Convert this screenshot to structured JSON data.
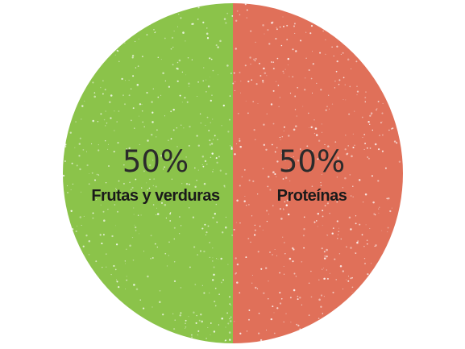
{
  "chart_data": {
    "type": "pie",
    "categories": [
      "Frutas y verduras",
      "Proteínas"
    ],
    "values": [
      50,
      50
    ],
    "value_labels": [
      "50%",
      "50%"
    ],
    "colors": [
      "#8bc34a",
      "#e07059"
    ],
    "legend": "none",
    "title": ""
  }
}
